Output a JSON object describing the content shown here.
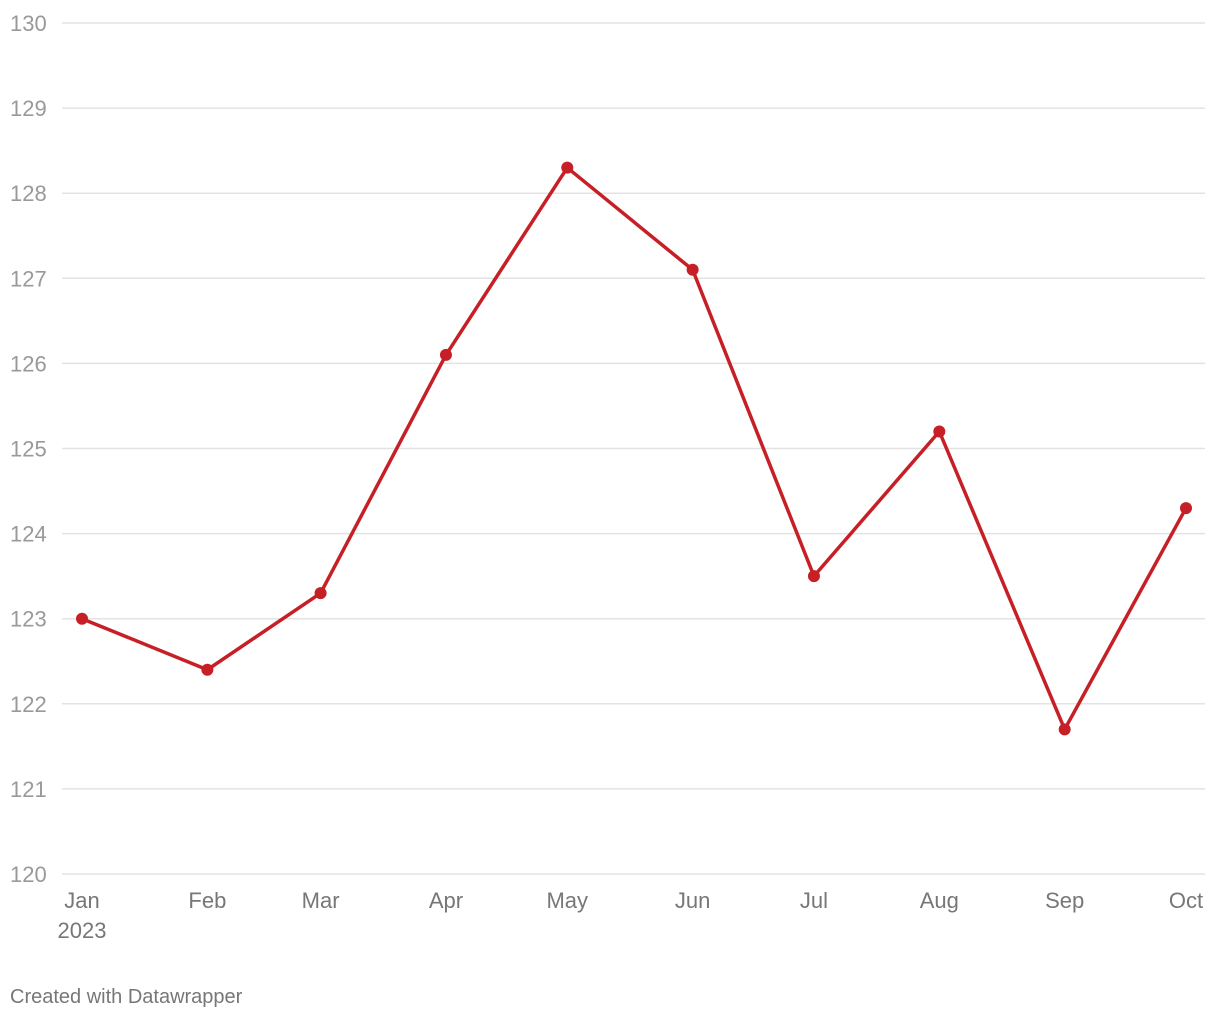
{
  "chart_data": {
    "type": "line",
    "x": [
      "2023-01",
      "2023-02",
      "2023-03",
      "2023-04",
      "2023-05",
      "2023-06",
      "2023-07",
      "2023-08",
      "2023-09",
      "2023-10"
    ],
    "values": [
      123.0,
      122.4,
      123.3,
      126.1,
      128.3,
      127.1,
      123.5,
      125.2,
      121.7,
      124.3
    ],
    "color": "#c62026",
    "xlim": [
      "2023-01",
      "2023-10"
    ],
    "xticks": [
      {
        "value": "2023-01",
        "label": "Jan"
      },
      {
        "value": "2023-02",
        "label": "Feb"
      },
      {
        "value": "2023-03",
        "label": "Mar"
      },
      {
        "value": "2023-04",
        "label": "Apr"
      },
      {
        "value": "2023-05",
        "label": "May"
      },
      {
        "value": "2023-06",
        "label": "Jun"
      },
      {
        "value": "2023-07",
        "label": "Jul"
      },
      {
        "value": "2023-08",
        "label": "Aug"
      },
      {
        "value": "2023-09",
        "label": "Sep"
      },
      {
        "value": "2023-10",
        "label": "Oct"
      }
    ],
    "xtick_sublabels": [
      {
        "value": "2023-01",
        "label": "2023"
      }
    ],
    "ylim": [
      120,
      130
    ],
    "yticks": [
      120,
      121,
      122,
      123,
      124,
      125,
      126,
      127,
      128,
      129,
      130
    ],
    "grid": true,
    "credit": "Created with Datawrapper"
  }
}
